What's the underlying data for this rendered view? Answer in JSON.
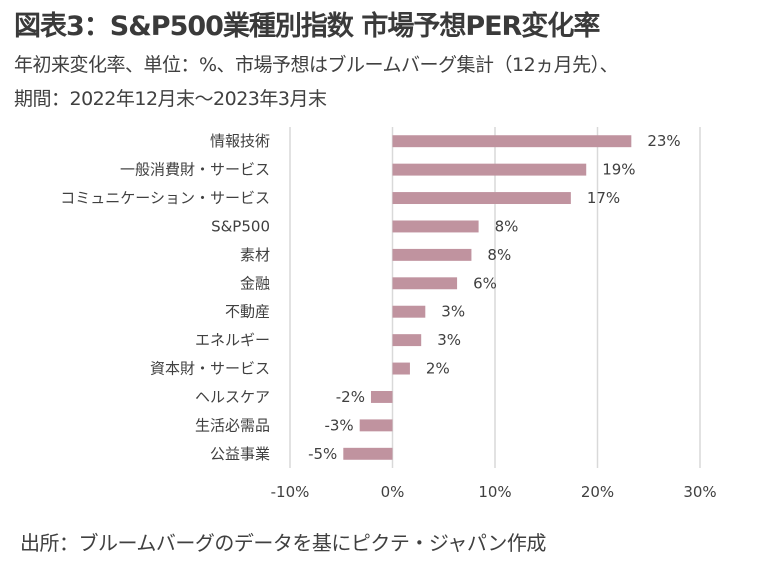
{
  "header": {
    "title": "図表3：S&P500業種別指数 市場予想PER変化率",
    "subtitle_line1": "年初来変化率、単位：%、市場予想はブルームバーグ集計（12ヵ月先）、",
    "subtitle_line2": "期間：2022年12月末～2023年3月末"
  },
  "footer": {
    "source": "出所：ブルームバーグのデータを基にピクテ・ジャパン作成"
  },
  "colors": {
    "bar": "#c0939f",
    "grid": "#d9d9d9",
    "text": "#404040"
  },
  "chart_data": {
    "type": "bar",
    "orientation": "horizontal",
    "title": "図表3：S&P500業種別指数 市場予想PER変化率",
    "xlabel": "",
    "ylabel": "",
    "xlim": [
      -10,
      30
    ],
    "x_ticks": [
      -10,
      0,
      10,
      20,
      30
    ],
    "x_tick_labels": [
      "-10%",
      "0%",
      "10%",
      "20%",
      "30%"
    ],
    "grid": true,
    "categories": [
      "情報技術",
      "一般消費財・サービス",
      "コミュニケーション・サービス",
      "S&P500",
      "素材",
      "金融",
      "不動産",
      "エネルギー",
      "資本財・サービス",
      "ヘルスケア",
      "生活必需品",
      "公益事業"
    ],
    "values": [
      23.3,
      18.9,
      17.4,
      8.4,
      7.7,
      6.3,
      3.2,
      2.8,
      1.7,
      -2.1,
      -3.2,
      -4.8
    ],
    "data_labels": [
      "23%",
      "19%",
      "17%",
      "8%",
      "8%",
      "6%",
      "3%",
      "3%",
      "2%",
      "-2%",
      "-3%",
      "-5%"
    ]
  }
}
